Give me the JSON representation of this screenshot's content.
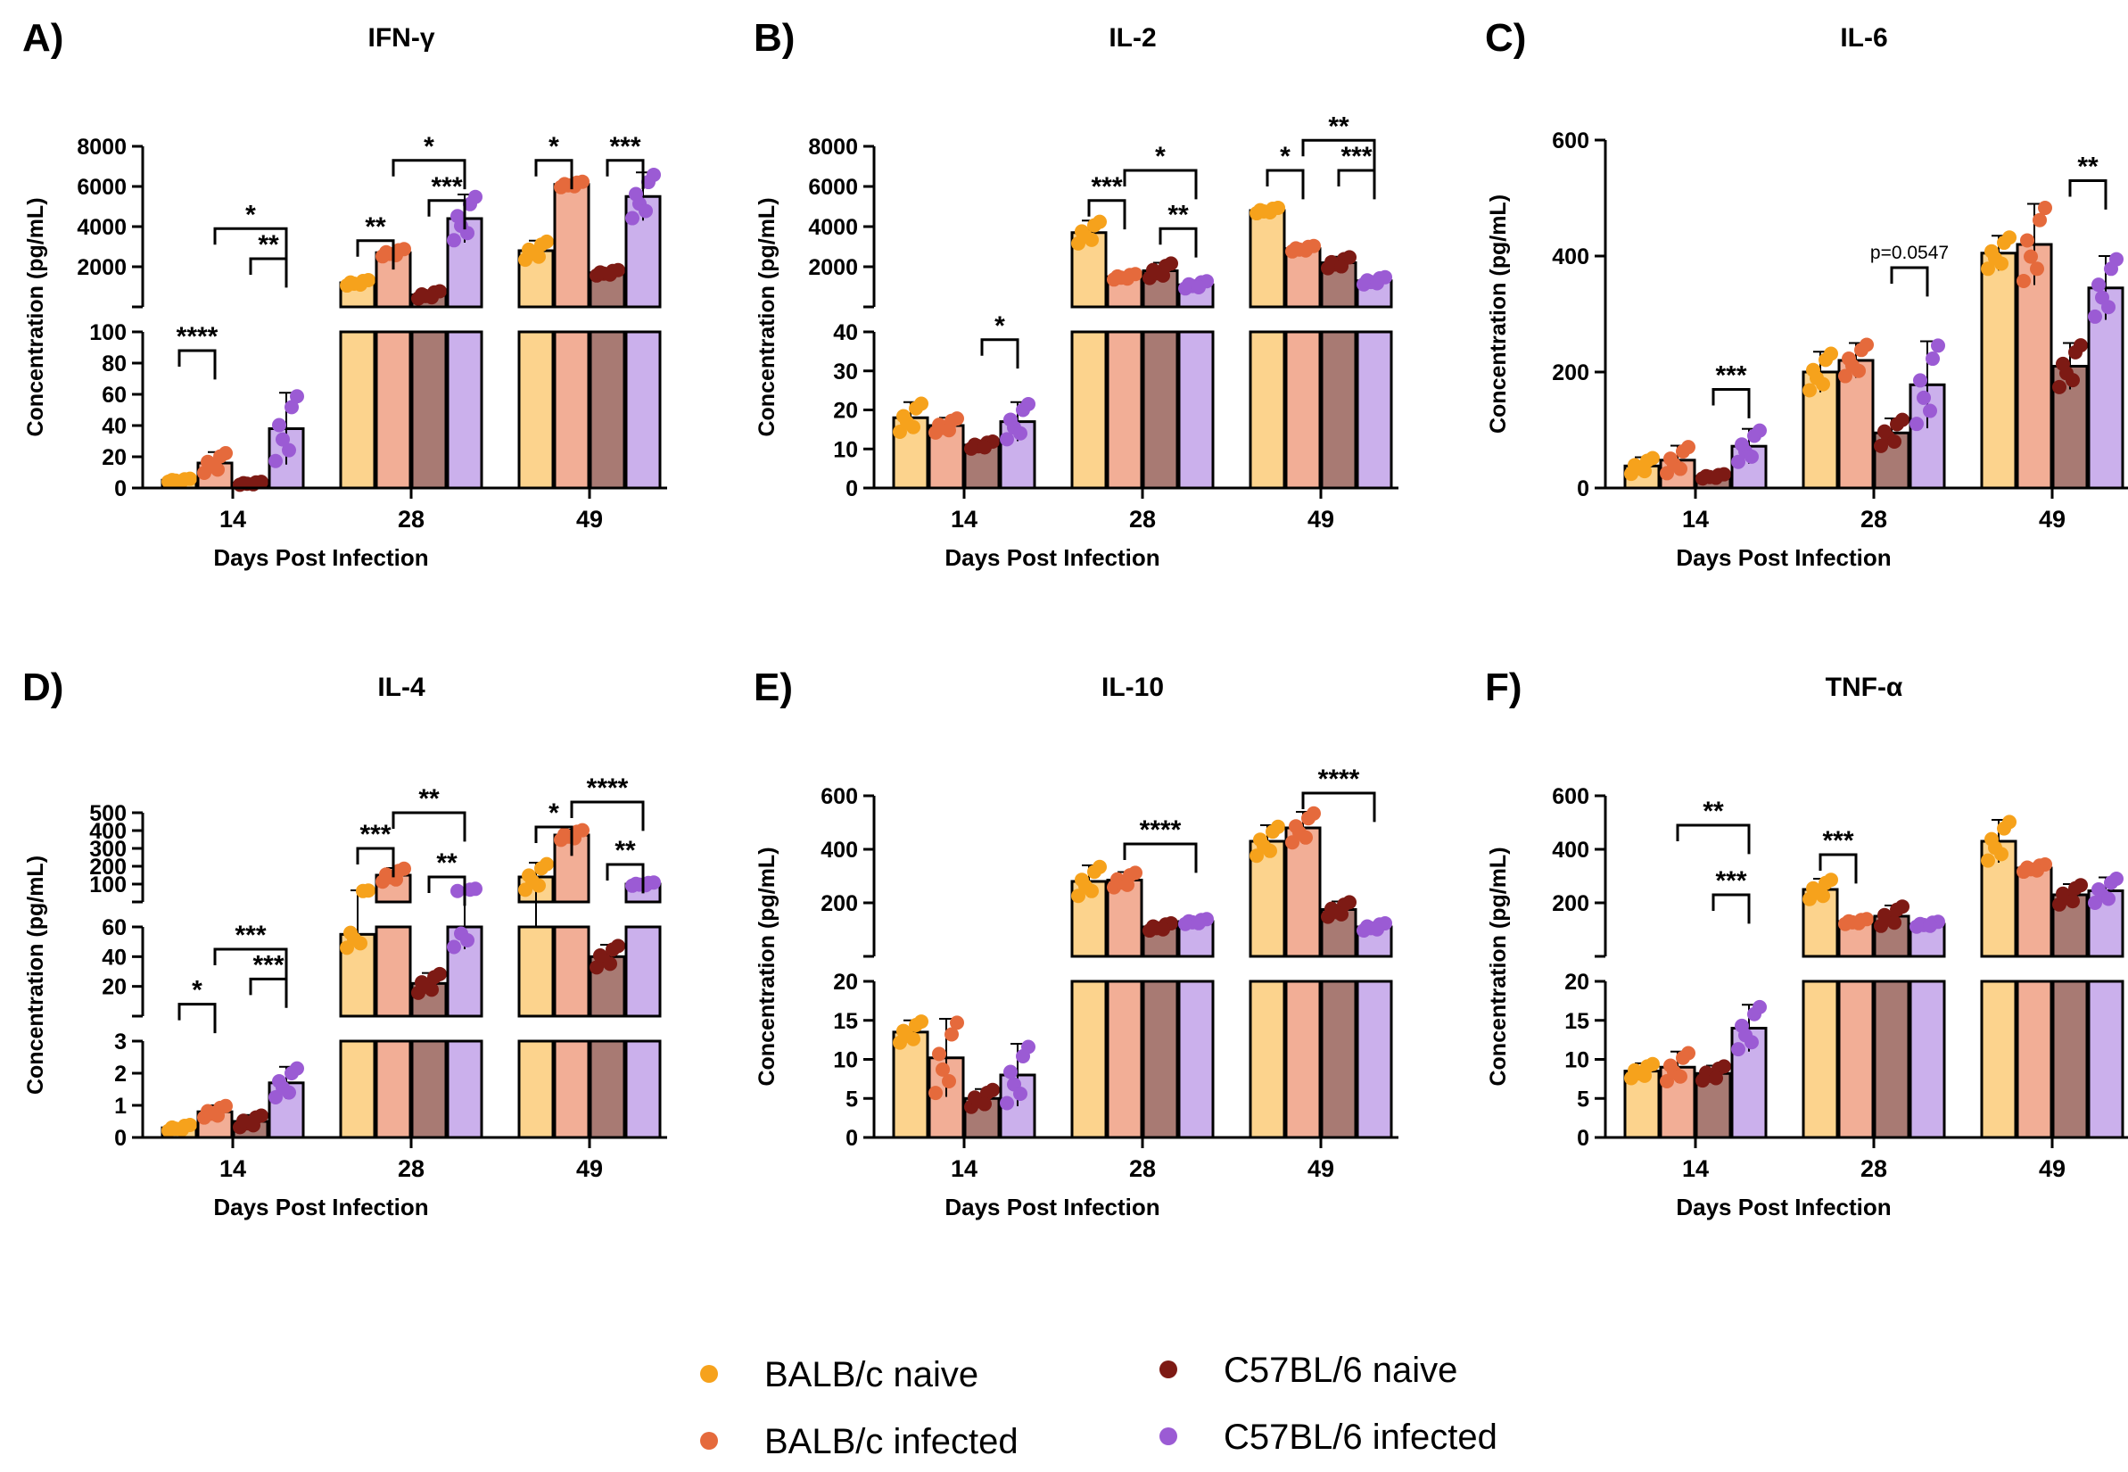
{
  "figure": {
    "colors": {
      "balbc_naive": "#F6A21C",
      "balbc_infected": "#E56A3C",
      "c57_naive": "#7D1A14",
      "c57_infected": "#9B5BD4"
    },
    "light_colors": {
      "balbc_naive": "#FCD38D",
      "balbc_infected": "#F2AE96",
      "c57_naive": "#A87A73",
      "c57_infected": "#CBB0EC"
    }
  },
  "legend": [
    {
      "key": "balbc_naive",
      "label": "BALB/c naive"
    },
    {
      "key": "balbc_infected",
      "label": "BALB/c infected"
    },
    {
      "key": "c57_naive",
      "label": "C57BL/6 naive"
    },
    {
      "key": "c57_infected",
      "label": "C57BL/6 infected"
    }
  ],
  "chart_data": [
    {
      "panel": "A)",
      "title": "IFN-γ",
      "type": "bar",
      "xlabel": "Days Post Infection",
      "ylabel": "Concentration (pg/mL)",
      "categories": [
        "14",
        "28",
        "49"
      ],
      "segments": [
        {
          "range": [
            0,
            100
          ],
          "ticks": [
            0,
            20,
            40,
            60,
            80,
            100
          ]
        },
        {
          "range": [
            0,
            8000
          ],
          "ticks": [
            2000,
            4000,
            6000,
            8000
          ]
        }
      ],
      "series": [
        {
          "name": "BALB/c naive",
          "key": "balbc_naive",
          "values": [
            5,
            1200,
            2800
          ],
          "sd": [
            1,
            150,
            500
          ]
        },
        {
          "name": "BALB/c infected",
          "key": "balbc_infected",
          "values": [
            16,
            2700,
            6100
          ],
          "sd": [
            7,
            200,
            150
          ]
        },
        {
          "name": "C57BL/6 naive",
          "key": "c57_naive",
          "values": [
            3,
            600,
            1700
          ],
          "sd": [
            1,
            200,
            150
          ]
        },
        {
          "name": "C57BL/6 infected",
          "key": "c57_infected",
          "values": [
            38,
            4400,
            5500
          ],
          "sd": [
            23,
            1200,
            1200
          ]
        }
      ],
      "significance": [
        {
          "cat": 0,
          "a": 0,
          "b": 1,
          "label": "****",
          "y": 88
        },
        {
          "cat": 0,
          "a": 2,
          "b": 3,
          "label": "**",
          "y": 2400
        },
        {
          "cat": 0,
          "a": 1,
          "b": 3,
          "label": "*",
          "y": 3900
        },
        {
          "cat": 1,
          "a": 0,
          "b": 1,
          "label": "**",
          "y": 3300
        },
        {
          "cat": 1,
          "a": 2,
          "b": 3,
          "label": "***",
          "y": 5300
        },
        {
          "cat": 1,
          "a": 1,
          "b": 3,
          "label": "*",
          "y": 7300
        },
        {
          "cat": 2,
          "a": 0,
          "b": 1,
          "label": "*",
          "y": 7300
        },
        {
          "cat": 2,
          "a": 2,
          "b": 3,
          "label": "***",
          "y": 7300
        }
      ]
    },
    {
      "panel": "B)",
      "title": "IL-2",
      "type": "bar",
      "xlabel": "Days Post Infection",
      "ylabel": "Concentration (pg/mL)",
      "categories": [
        "14",
        "28",
        "49"
      ],
      "segments": [
        {
          "range": [
            0,
            40
          ],
          "ticks": [
            0,
            10,
            20,
            30,
            40
          ]
        },
        {
          "range": [
            0,
            8000
          ],
          "ticks": [
            2000,
            4000,
            6000,
            8000
          ]
        }
      ],
      "series": [
        {
          "name": "BALB/c naive",
          "key": "balbc_naive",
          "values": [
            18,
            3700,
            4800
          ],
          "sd": [
            4,
            600,
            150
          ]
        },
        {
          "name": "BALB/c infected",
          "key": "balbc_infected",
          "values": [
            16,
            1500,
            2900
          ],
          "sd": [
            2,
            150,
            150
          ]
        },
        {
          "name": "C57BL/6 naive",
          "key": "c57_naive",
          "values": [
            11,
            1800,
            2200
          ],
          "sd": [
            1,
            400,
            300
          ]
        },
        {
          "name": "C57BL/6 infected",
          "key": "c57_infected",
          "values": [
            17,
            1100,
            1300
          ],
          "sd": [
            5,
            200,
            200
          ]
        }
      ],
      "significance": [
        {
          "cat": 0,
          "a": 2,
          "b": 3,
          "label": "*",
          "y": 38
        },
        {
          "cat": 1,
          "a": 0,
          "b": 1,
          "label": "***",
          "y": 5300
        },
        {
          "cat": 1,
          "a": 2,
          "b": 3,
          "label": "**",
          "y": 3900
        },
        {
          "cat": 1,
          "a": 1,
          "b": 3,
          "label": "*",
          "y": 6800
        },
        {
          "cat": 2,
          "a": 0,
          "b": 1,
          "label": "*",
          "y": 6800
        },
        {
          "cat": 2,
          "a": 2,
          "b": 3,
          "label": "***",
          "y": 6800
        },
        {
          "cat": 2,
          "a": 1,
          "b": 3,
          "label": "**",
          "y": 8300
        }
      ]
    },
    {
      "panel": "C)",
      "title": "IL-6",
      "type": "bar",
      "xlabel": "Days Post Infection",
      "ylabel": "Concentration (pg/mL)",
      "categories": [
        "14",
        "28",
        "49"
      ],
      "segments": [
        {
          "range": [
            0,
            600
          ],
          "ticks": [
            0,
            200,
            400,
            600
          ]
        }
      ],
      "series": [
        {
          "name": "BALB/c naive",
          "key": "balbc_naive",
          "values": [
            38,
            200,
            405
          ],
          "sd": [
            15,
            35,
            30
          ]
        },
        {
          "name": "BALB/c infected",
          "key": "balbc_infected",
          "values": [
            48,
            220,
            420
          ],
          "sd": [
            25,
            30,
            70
          ]
        },
        {
          "name": "C57BL/6 naive",
          "key": "c57_naive",
          "values": [
            20,
            95,
            210
          ],
          "sd": [
            4,
            25,
            40
          ]
        },
        {
          "name": "C57BL/6 infected",
          "key": "c57_infected",
          "values": [
            72,
            178,
            345
          ],
          "sd": [
            30,
            75,
            55
          ]
        }
      ],
      "significance": [
        {
          "cat": 0,
          "a": 2,
          "b": 3,
          "label": "***",
          "y": 170
        },
        {
          "cat": 1,
          "a": 2,
          "b": 3,
          "label": "p=0.0547",
          "y": 380
        },
        {
          "cat": 2,
          "a": 2,
          "b": 3,
          "label": "**",
          "y": 530
        }
      ]
    },
    {
      "panel": "D)",
      "title": "IL-4",
      "type": "bar",
      "xlabel": "Days Post Infection",
      "ylabel": "Concentration (pg/mL)",
      "categories": [
        "14",
        "28",
        "49"
      ],
      "segments": [
        {
          "range": [
            0,
            3
          ],
          "ticks": [
            0,
            1,
            2,
            3
          ]
        },
        {
          "range": [
            0,
            60
          ],
          "ticks": [
            20,
            40,
            60
          ]
        },
        {
          "range": [
            0,
            500
          ],
          "ticks": [
            100,
            200,
            300,
            400,
            500
          ]
        }
      ],
      "series": [
        {
          "name": "BALB/c naive",
          "key": "balbc_naive",
          "values": [
            0.3,
            55,
            140
          ],
          "sd": [
            0.1,
            10,
            80
          ]
        },
        {
          "name": "BALB/c infected",
          "key": "balbc_infected",
          "values": [
            0.8,
            150,
            375
          ],
          "sd": [
            0.2,
            40,
            30
          ]
        },
        {
          "name": "C57BL/6 naive",
          "key": "c57_naive",
          "values": [
            0.5,
            22,
            40
          ],
          "sd": [
            0.2,
            7,
            8
          ]
        },
        {
          "name": "C57BL/6 infected",
          "key": "c57_infected",
          "values": [
            1.7,
            60,
            100
          ],
          "sd": [
            0.5,
            15,
            10
          ]
        }
      ],
      "significance": [
        {
          "cat": 0,
          "a": 0,
          "b": 1,
          "label": "*",
          "y": 8
        },
        {
          "cat": 0,
          "a": 2,
          "b": 3,
          "label": "***",
          "y": 25
        },
        {
          "cat": 0,
          "a": 1,
          "b": 3,
          "label": "***",
          "y": 45
        },
        {
          "cat": 1,
          "a": 0,
          "b": 1,
          "label": "***",
          "y": 300
        },
        {
          "cat": 1,
          "a": 2,
          "b": 3,
          "label": "**",
          "y": 140
        },
        {
          "cat": 1,
          "a": 1,
          "b": 3,
          "label": "**",
          "y": 500
        },
        {
          "cat": 2,
          "a": 0,
          "b": 1,
          "label": "*",
          "y": 420
        },
        {
          "cat": 2,
          "a": 2,
          "b": 3,
          "label": "**",
          "y": 210
        },
        {
          "cat": 2,
          "a": 1,
          "b": 3,
          "label": "****",
          "y": 560
        }
      ]
    },
    {
      "panel": "E)",
      "title": "IL-10",
      "type": "bar",
      "xlabel": "Days Post Infection",
      "ylabel": "Concentration (pg/mL)",
      "categories": [
        "14",
        "28",
        "49"
      ],
      "segments": [
        {
          "range": [
            0,
            20
          ],
          "ticks": [
            0,
            5,
            10,
            15,
            20
          ]
        },
        {
          "range": [
            0,
            600
          ],
          "ticks": [
            200,
            400,
            600
          ]
        }
      ],
      "series": [
        {
          "name": "BALB/c naive",
          "key": "balbc_naive",
          "values": [
            13.5,
            280,
            430
          ],
          "sd": [
            1.5,
            60,
            60
          ]
        },
        {
          "name": "BALB/c infected",
          "key": "balbc_infected",
          "values": [
            10.2,
            285,
            480
          ],
          "sd": [
            5,
            30,
            60
          ]
        },
        {
          "name": "C57BL/6 naive",
          "key": "c57_naive",
          "values": [
            5,
            110,
            175
          ],
          "sd": [
            1.2,
            15,
            30
          ]
        },
        {
          "name": "C57BL/6 infected",
          "key": "c57_infected",
          "values": [
            8,
            130,
            110
          ],
          "sd": [
            4,
            10,
            15
          ]
        }
      ],
      "significance": [
        {
          "cat": 1,
          "a": 1,
          "b": 3,
          "label": "****",
          "y": 420
        },
        {
          "cat": 2,
          "a": 1,
          "b": 3,
          "label": "****",
          "y": 610
        }
      ]
    },
    {
      "panel": "F)",
      "title": "TNF-α",
      "type": "bar",
      "xlabel": "Days Post Infection",
      "ylabel": "Concentration (pg/mL)",
      "categories": [
        "14",
        "28",
        "49"
      ],
      "segments": [
        {
          "range": [
            0,
            20
          ],
          "ticks": [
            0,
            5,
            10,
            15,
            20
          ]
        },
        {
          "range": [
            0,
            600
          ],
          "ticks": [
            200,
            400,
            600
          ]
        }
      ],
      "series": [
        {
          "name": "BALB/c naive",
          "key": "balbc_naive",
          "values": [
            8.5,
            250,
            430
          ],
          "sd": [
            1,
            40,
            80
          ]
        },
        {
          "name": "BALB/c infected",
          "key": "balbc_infected",
          "values": [
            9,
            130,
            330
          ],
          "sd": [
            2,
            10,
            15
          ]
        },
        {
          "name": "C57BL/6 naive",
          "key": "c57_naive",
          "values": [
            8.2,
            150,
            230
          ],
          "sd": [
            1,
            40,
            40
          ]
        },
        {
          "name": "C57BL/6 infected",
          "key": "c57_infected",
          "values": [
            14,
            120,
            245
          ],
          "sd": [
            3,
            10,
            50
          ]
        }
      ],
      "significance": [
        {
          "cat": 0,
          "a": 1,
          "b": 3,
          "label": "**",
          "y": 490
        },
        {
          "cat": 0,
          "a": 2,
          "b": 3,
          "label": "***",
          "y": 230
        },
        {
          "cat": 1,
          "a": 0,
          "b": 1,
          "label": "***",
          "y": 380
        }
      ]
    }
  ]
}
